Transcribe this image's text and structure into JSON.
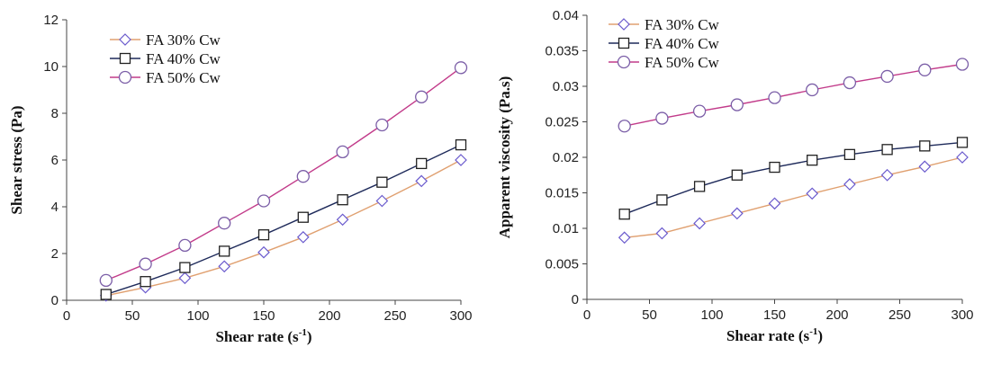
{
  "chart_data": [
    {
      "type": "line",
      "title": "",
      "xlabel": "Shear rate (s",
      "xlabel_sup": "-1",
      "xlabel_end": ")",
      "ylabel": "Shear stress (Pa)",
      "xlim": [
        0,
        300
      ],
      "ylim": [
        0,
        12
      ],
      "xticks": [
        0,
        50,
        100,
        150,
        200,
        250,
        300
      ],
      "yticks": [
        0,
        2,
        4,
        6,
        8,
        10,
        12
      ],
      "ytick_labels": [
        "0",
        "2",
        "4",
        "6",
        "8",
        "10",
        "12"
      ],
      "grid": false,
      "legend_position": "top-left",
      "x": [
        30,
        60,
        90,
        120,
        150,
        180,
        210,
        240,
        270,
        300
      ],
      "series": [
        {
          "name": "FA 30% Cw",
          "marker": "diamond",
          "marker_color": "#6a5acd",
          "line_color": "#e0a070",
          "values": [
            0.2,
            0.55,
            0.95,
            1.45,
            2.05,
            2.7,
            3.45,
            4.25,
            5.1,
            6.0
          ]
        },
        {
          "name": "FA 40% Cw",
          "marker": "square",
          "marker_color": "#222222",
          "line_color": "#1e2a5a",
          "values": [
            0.25,
            0.8,
            1.4,
            2.1,
            2.8,
            3.55,
            4.3,
            5.05,
            5.85,
            6.65
          ]
        },
        {
          "name": "FA 50% Cw",
          "marker": "circle",
          "marker_color": "#7b5ea7",
          "line_color": "#c23b8a",
          "values": [
            0.85,
            1.55,
            2.35,
            3.3,
            4.25,
            5.3,
            6.35,
            7.5,
            8.7,
            9.95
          ]
        }
      ]
    },
    {
      "type": "line",
      "title": "",
      "xlabel": "Shear rate (s",
      "xlabel_sup": "-1",
      "xlabel_end": ")",
      "ylabel": "Apparent viscosity (Pa.s)",
      "xlim": [
        0,
        300
      ],
      "ylim": [
        0,
        0.04
      ],
      "xticks": [
        0,
        50,
        100,
        150,
        200,
        250,
        300
      ],
      "yticks": [
        0,
        0.005,
        0.01,
        0.015,
        0.02,
        0.025,
        0.03,
        0.035,
        0.04
      ],
      "ytick_labels": [
        "0",
        "0.005",
        "0.01",
        "0.015",
        "0.02",
        "0.025",
        "0.03",
        "0.035",
        "0.04"
      ],
      "grid": false,
      "legend_position": "top-left",
      "x": [
        30,
        60,
        90,
        120,
        150,
        180,
        210,
        240,
        270,
        300
      ],
      "series": [
        {
          "name": "FA 30% Cw",
          "marker": "diamond",
          "marker_color": "#6a5acd",
          "line_color": "#e0a070",
          "values": [
            0.0087,
            0.0093,
            0.0107,
            0.0121,
            0.0135,
            0.0149,
            0.0162,
            0.0175,
            0.0187,
            0.02
          ]
        },
        {
          "name": "FA 40% Cw",
          "marker": "square",
          "marker_color": "#222222",
          "line_color": "#1e2a5a",
          "values": [
            0.012,
            0.014,
            0.0159,
            0.0175,
            0.0186,
            0.0196,
            0.0204,
            0.0211,
            0.0216,
            0.0221
          ]
        },
        {
          "name": "FA 50% Cw",
          "marker": "circle",
          "marker_color": "#7b5ea7",
          "line_color": "#c23b8a",
          "values": [
            0.0244,
            0.0255,
            0.0265,
            0.0274,
            0.0284,
            0.0295,
            0.0305,
            0.0314,
            0.0323,
            0.0331
          ]
        }
      ]
    }
  ]
}
